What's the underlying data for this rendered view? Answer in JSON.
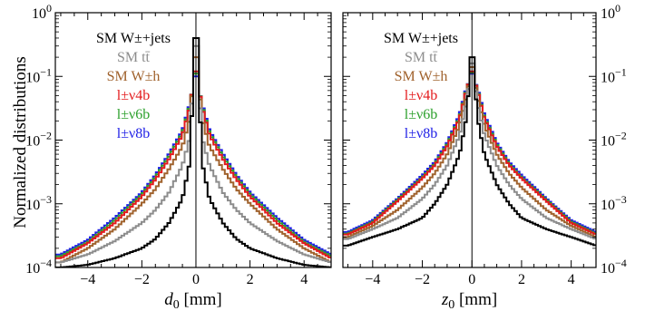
{
  "figure": {
    "ylabel": "Normalized distributions"
  },
  "legend": [
    {
      "label": "SM W±+jets",
      "color": "#000000"
    },
    {
      "label": "SM tt̄",
      "color": "#8c8c8c"
    },
    {
      "label": "SM W±h",
      "color": "#a0622d"
    },
    {
      "label": "l±ν4b",
      "color": "#e31a1c"
    },
    {
      "label": "l±ν6b",
      "color": "#2ca02c"
    },
    {
      "label": "l±ν8b",
      "color": "#1f1fe6"
    }
  ],
  "chart_data": [
    {
      "type": "line",
      "title": "",
      "xlabel": "d0 [mm]",
      "ylabel": "Normalized distributions",
      "xlim": [
        -5.2,
        5.0
      ],
      "ylim": [
        0.0001,
        1
      ],
      "yscale": "log",
      "x_ticks": [
        "−4",
        "−2",
        "0",
        "2",
        "4"
      ],
      "y_ticks": [
        "10^−4",
        "10^−3",
        "10^−2",
        "10^−1",
        "10^0"
      ],
      "y_tick_side": "left",
      "vertical_line_at": 0,
      "legend_position": "top-left",
      "grid": false,
      "x": [
        -5.0,
        -4.0,
        -3.0,
        -2.0,
        -1.5,
        -1.0,
        -0.5,
        -0.25,
        0.0,
        0.25,
        0.5,
        1.0,
        1.5,
        2.0,
        3.0,
        4.0,
        5.0
      ],
      "series": [
        {
          "name": "SM W±+jets",
          "color": "#000000",
          "values": [
            0.0001,
            0.00011,
            0.00014,
            0.0002,
            0.00028,
            0.0005,
            0.0012,
            0.004,
            0.4,
            0.004,
            0.0012,
            0.0005,
            0.00028,
            0.0002,
            0.00014,
            0.00011,
            0.0001
          ]
        },
        {
          "name": "SM tt̄",
          "color": "#8c8c8c",
          "values": [
            0.00012,
            0.00016,
            0.00026,
            0.0005,
            0.0008,
            0.0015,
            0.004,
            0.01,
            0.3,
            0.01,
            0.004,
            0.0015,
            0.0008,
            0.0005,
            0.00026,
            0.00016,
            0.00012
          ]
        },
        {
          "name": "SM W±h",
          "color": "#a0622d",
          "values": [
            0.00012,
            0.0002,
            0.0004,
            0.001,
            0.0017,
            0.0035,
            0.008,
            0.02,
            0.2,
            0.02,
            0.008,
            0.0035,
            0.0017,
            0.001,
            0.0004,
            0.0002,
            0.00012
          ]
        },
        {
          "name": "l±ν4b",
          "color": "#e31a1c",
          "values": [
            0.00014,
            0.00024,
            0.0005,
            0.0013,
            0.0024,
            0.005,
            0.012,
            0.03,
            0.12,
            0.03,
            0.012,
            0.005,
            0.0024,
            0.0013,
            0.0005,
            0.00024,
            0.00014
          ]
        },
        {
          "name": "l±ν6b",
          "color": "#2ca02c",
          "values": [
            0.00015,
            0.00025,
            0.00055,
            0.0014,
            0.0026,
            0.0055,
            0.013,
            0.032,
            0.11,
            0.032,
            0.013,
            0.0055,
            0.0026,
            0.0014,
            0.00055,
            0.00025,
            0.00015
          ]
        },
        {
          "name": "l±ν8b",
          "color": "#1f1fe6",
          "values": [
            0.00016,
            0.00027,
            0.0006,
            0.0015,
            0.0028,
            0.006,
            0.014,
            0.034,
            0.1,
            0.034,
            0.014,
            0.006,
            0.0028,
            0.0015,
            0.0006,
            0.00027,
            0.00016
          ]
        }
      ]
    },
    {
      "type": "line",
      "title": "",
      "xlabel": "z0 [mm]",
      "ylabel": "",
      "xlim": [
        -5.2,
        5.0
      ],
      "ylim": [
        0.0001,
        1
      ],
      "yscale": "log",
      "x_ticks": [
        "−4",
        "−2",
        "0",
        "2",
        "4"
      ],
      "y_ticks": [
        "10^−4",
        "10^−3",
        "10^−2",
        "10^−1",
        "10^0"
      ],
      "y_tick_side": "right",
      "vertical_line_at": 0,
      "legend_position": "top-left",
      "grid": false,
      "x": [
        -5.0,
        -4.0,
        -3.0,
        -2.0,
        -1.5,
        -1.0,
        -0.5,
        -0.25,
        0.0,
        0.25,
        0.5,
        1.0,
        1.5,
        2.0,
        3.0,
        4.0,
        5.0
      ],
      "series": [
        {
          "name": "SM W±+jets",
          "color": "#000000",
          "values": [
            0.00022,
            0.0003,
            0.0004,
            0.0006,
            0.001,
            0.002,
            0.006,
            0.02,
            0.2,
            0.02,
            0.006,
            0.002,
            0.001,
            0.0006,
            0.0004,
            0.0003,
            0.00022
          ]
        },
        {
          "name": "SM tt̄",
          "color": "#8c8c8c",
          "values": [
            0.00028,
            0.0004,
            0.0006,
            0.0012,
            0.002,
            0.004,
            0.012,
            0.035,
            0.16,
            0.035,
            0.012,
            0.004,
            0.002,
            0.0012,
            0.0006,
            0.0004,
            0.00028
          ]
        },
        {
          "name": "SM W±h",
          "color": "#a0622d",
          "values": [
            0.0003,
            0.00045,
            0.0008,
            0.0018,
            0.003,
            0.006,
            0.017,
            0.045,
            0.14,
            0.045,
            0.017,
            0.006,
            0.003,
            0.0018,
            0.0008,
            0.00045,
            0.0003
          ]
        },
        {
          "name": "l±ν4b",
          "color": "#e31a1c",
          "values": [
            0.00033,
            0.0005,
            0.0011,
            0.0025,
            0.004,
            0.008,
            0.022,
            0.055,
            0.12,
            0.055,
            0.022,
            0.008,
            0.004,
            0.0025,
            0.0011,
            0.0005,
            0.00033
          ]
        },
        {
          "name": "l±ν6b",
          "color": "#2ca02c",
          "values": [
            0.00034,
            0.00052,
            0.00115,
            0.0026,
            0.0042,
            0.0085,
            0.023,
            0.057,
            0.115,
            0.057,
            0.023,
            0.0085,
            0.0042,
            0.0026,
            0.00115,
            0.00052,
            0.00034
          ]
        },
        {
          "name": "l±ν8b",
          "color": "#1f1fe6",
          "values": [
            0.00036,
            0.00055,
            0.0012,
            0.0028,
            0.0045,
            0.009,
            0.025,
            0.06,
            0.11,
            0.06,
            0.025,
            0.009,
            0.0045,
            0.0028,
            0.0012,
            0.00055,
            0.00036
          ]
        }
      ]
    }
  ]
}
